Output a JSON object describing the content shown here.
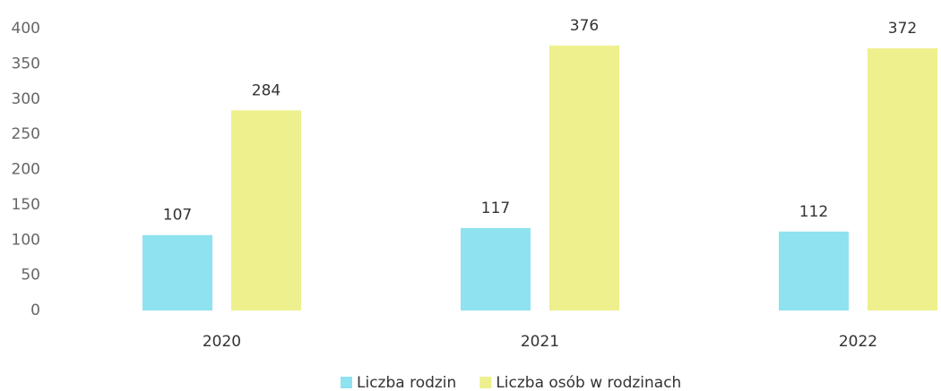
{
  "chart_data": {
    "type": "bar",
    "categories": [
      "2020",
      "2021",
      "2022"
    ],
    "series": [
      {
        "name": "Liczba rodzin",
        "color": "#8fe2ef",
        "values": [
          107,
          117,
          112
        ]
      },
      {
        "name": "Liczba osób w rodzinach",
        "color": "#edf08c",
        "values": [
          284,
          376,
          372
        ]
      }
    ],
    "ylim": [
      0,
      400
    ],
    "yticks": [
      0,
      50,
      100,
      150,
      200,
      250,
      300,
      350,
      400
    ],
    "grid": false,
    "legend": "bottom"
  }
}
